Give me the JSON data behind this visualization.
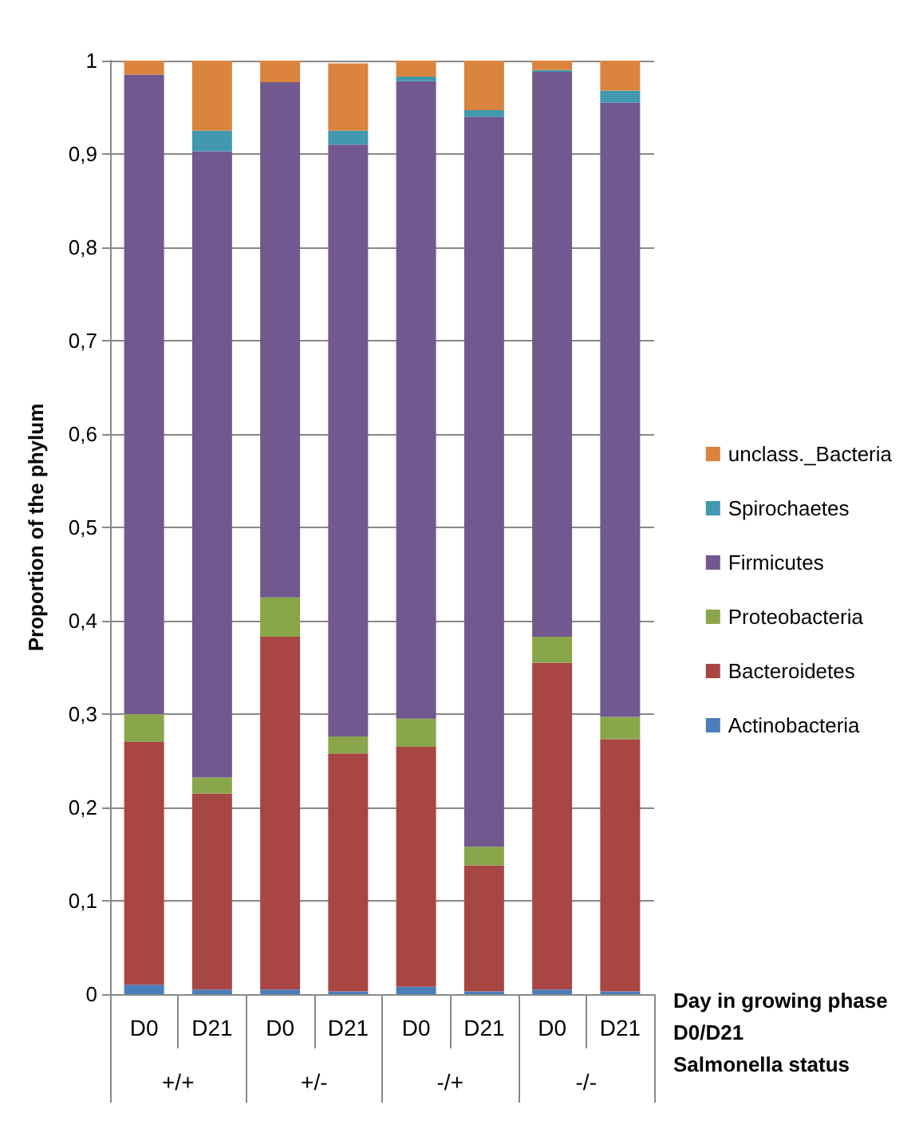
{
  "chart_data": {
    "type": "bar",
    "stacked": true,
    "ylabel": "Proportion of the phylum",
    "xlabel": "Day in growing phase\nD0/D21\nSalmonella status",
    "categories": [
      "D0",
      "D21",
      "D0",
      "D21",
      "D0",
      "D21",
      "D0",
      "D21"
    ],
    "annotations": [
      "+/+",
      "+/-",
      "-/+",
      "-/-"
    ],
    "series": [
      {
        "name": "Actinobacteria",
        "color": "#4a7ebb",
        "values": [
          0.01,
          0.005,
          0.005,
          0.003,
          0.008,
          0.003,
          0.005,
          0.003
        ]
      },
      {
        "name": "Bacteroidetes",
        "color": "#a84644",
        "values": [
          0.26,
          0.21,
          0.378,
          0.255,
          0.257,
          0.135,
          0.35,
          0.27
        ]
      },
      {
        "name": "Proteobacteria",
        "color": "#8aa64b",
        "values": [
          0.03,
          0.017,
          0.042,
          0.018,
          0.03,
          0.02,
          0.028,
          0.024
        ]
      },
      {
        "name": "Firmicutes",
        "color": "#71588f",
        "values": [
          0.685,
          0.671,
          0.552,
          0.634,
          0.683,
          0.782,
          0.605,
          0.658
        ]
      },
      {
        "name": "Spirochaetes",
        "color": "#4198af",
        "values": [
          0,
          0.022,
          0,
          0.015,
          0.005,
          0.007,
          0.002,
          0.013
        ]
      },
      {
        "name": "unclass._Bacteria",
        "color": "#db843d",
        "values": [
          0.015,
          0.075,
          0.023,
          0.072,
          0.017,
          0.053,
          0.01,
          0.032
        ]
      }
    ],
    "ylim": [
      0,
      1
    ],
    "yticks": [
      0,
      {
        "value": 0.1,
        "label": "0,1"
      },
      {
        "value": 0.2,
        "label": "0,2"
      },
      {
        "value": 0.3,
        "label": "0,3"
      },
      {
        "value": 0.4,
        "label": "0,4"
      },
      {
        "value": 0.5,
        "label": "0,5"
      },
      {
        "value": 0.6,
        "label": "0,6"
      },
      {
        "value": 0.7,
        "label": "0,7"
      },
      {
        "value": 0.8,
        "label": "0,8"
      },
      {
        "value": 0.9,
        "label": "0,9"
      },
      1
    ],
    "grid": "y",
    "legend": "right"
  }
}
